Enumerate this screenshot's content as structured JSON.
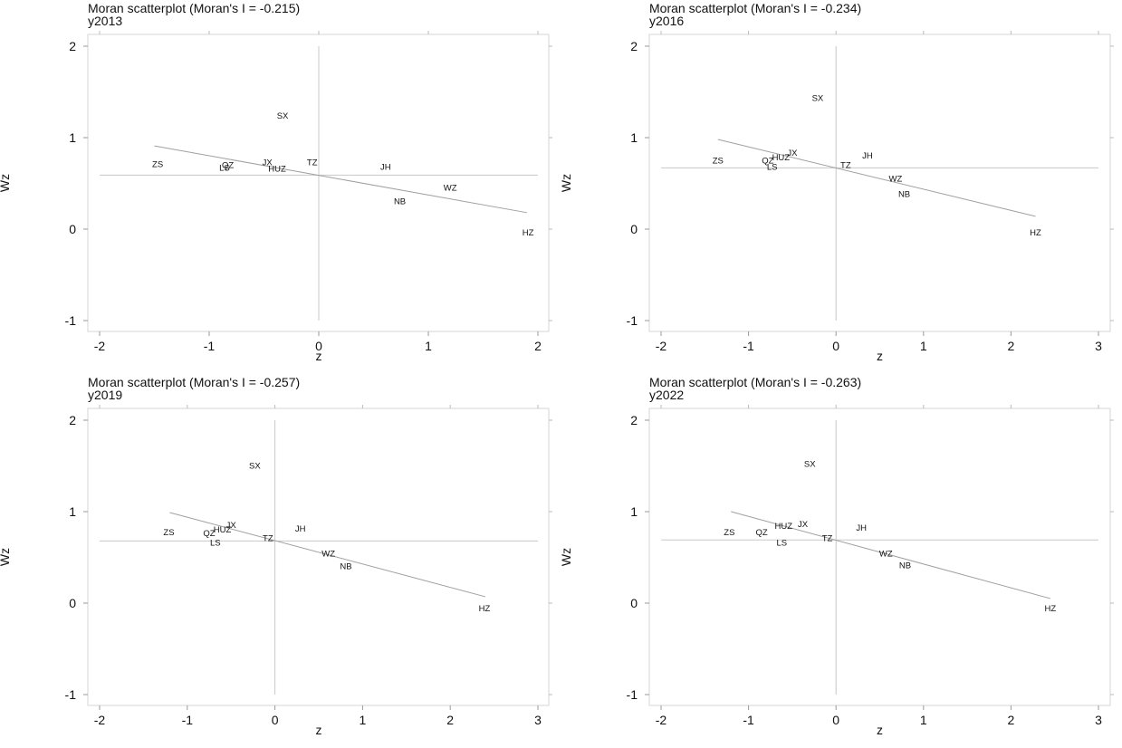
{
  "chart_data": [
    {
      "type": "scatter",
      "title": "Moran scatterplot (Moran's I = -0.215)",
      "subtitle": "y2013",
      "xlabel": "z",
      "ylabel": "Wz",
      "xlim": [
        -2,
        2
      ],
      "ylim": [
        -1,
        2
      ],
      "xticks": [
        "-2",
        "-1",
        "0",
        "1",
        "2"
      ],
      "yticks": [
        "-1",
        "0",
        "1",
        "2"
      ],
      "grid": false,
      "mean_wz": 0.59,
      "fit_line": {
        "x": [
          -1.5,
          1.9
        ],
        "y": [
          0.91,
          0.18
        ]
      },
      "points": [
        {
          "label": "SX",
          "x": -0.33,
          "y": 1.24
        },
        {
          "label": "ZS",
          "x": -1.47,
          "y": 0.71
        },
        {
          "label": "QZ",
          "x": -0.83,
          "y": 0.7
        },
        {
          "label": "LS",
          "x": -0.86,
          "y": 0.67
        },
        {
          "label": "JX",
          "x": -0.47,
          "y": 0.73
        },
        {
          "label": "HUZ",
          "x": -0.38,
          "y": 0.66
        },
        {
          "label": "TZ",
          "x": -0.06,
          "y": 0.73
        },
        {
          "label": "JH",
          "x": 0.61,
          "y": 0.68
        },
        {
          "label": "WZ",
          "x": 1.2,
          "y": 0.45
        },
        {
          "label": "NB",
          "x": 0.74,
          "y": 0.3
        },
        {
          "label": "HZ",
          "x": 1.91,
          "y": -0.04
        }
      ]
    },
    {
      "type": "scatter",
      "title": "Moran scatterplot (Moran's I = -0.234)",
      "subtitle": "y2016",
      "xlabel": "z",
      "ylabel": "Wz",
      "xlim": [
        -2,
        3
      ],
      "ylim": [
        -1,
        2
      ],
      "xticks": [
        "-2",
        "-1",
        "0",
        "1",
        "2",
        "3"
      ],
      "yticks": [
        "-1",
        "0",
        "1",
        "2"
      ],
      "grid": false,
      "mean_wz": 0.67,
      "fit_line": {
        "x": [
          -1.35,
          2.28
        ],
        "y": [
          0.98,
          0.14
        ]
      },
      "points": [
        {
          "label": "SX",
          "x": -0.21,
          "y": 1.43
        },
        {
          "label": "ZS",
          "x": -1.35,
          "y": 0.75
        },
        {
          "label": "QZ",
          "x": -0.78,
          "y": 0.75
        },
        {
          "label": "HUZ",
          "x": -0.63,
          "y": 0.78
        },
        {
          "label": "JX",
          "x": -0.5,
          "y": 0.83
        },
        {
          "label": "LS",
          "x": -0.73,
          "y": 0.68
        },
        {
          "label": "TZ",
          "x": 0.11,
          "y": 0.7
        },
        {
          "label": "JH",
          "x": 0.36,
          "y": 0.8
        },
        {
          "label": "WZ",
          "x": 0.68,
          "y": 0.55
        },
        {
          "label": "NB",
          "x": 0.78,
          "y": 0.38
        },
        {
          "label": "HZ",
          "x": 2.28,
          "y": -0.04
        }
      ]
    },
    {
      "type": "scatter",
      "title": "Moran scatterplot (Moran's I = -0.257)",
      "subtitle": "y2019",
      "xlabel": "z",
      "ylabel": "Wz",
      "xlim": [
        -2,
        3
      ],
      "ylim": [
        -1,
        2
      ],
      "xticks": [
        "-2",
        "-1",
        "0",
        "1",
        "2",
        "3"
      ],
      "yticks": [
        "-1",
        "0",
        "1",
        "2"
      ],
      "grid": false,
      "mean_wz": 0.68,
      "fit_line": {
        "x": [
          -1.2,
          2.4
        ],
        "y": [
          0.99,
          0.07
        ]
      },
      "points": [
        {
          "label": "SX",
          "x": -0.23,
          "y": 1.5
        },
        {
          "label": "ZS",
          "x": -1.21,
          "y": 0.77
        },
        {
          "label": "QZ",
          "x": -0.75,
          "y": 0.76
        },
        {
          "label": "HUZ",
          "x": -0.6,
          "y": 0.8
        },
        {
          "label": "JX",
          "x": -0.5,
          "y": 0.85
        },
        {
          "label": "LS",
          "x": -0.68,
          "y": 0.66
        },
        {
          "label": "TZ",
          "x": -0.08,
          "y": 0.71
        },
        {
          "label": "JH",
          "x": 0.29,
          "y": 0.81
        },
        {
          "label": "WZ",
          "x": 0.61,
          "y": 0.54
        },
        {
          "label": "NB",
          "x": 0.81,
          "y": 0.4
        },
        {
          "label": "HZ",
          "x": 2.39,
          "y": -0.06
        }
      ]
    },
    {
      "type": "scatter",
      "title": "Moran scatterplot (Moran's I = -0.263)",
      "subtitle": "y2022",
      "xlabel": "z",
      "ylabel": "Wz",
      "xlim": [
        -2,
        3
      ],
      "ylim": [
        -1,
        2
      ],
      "xticks": [
        "-2",
        "-1",
        "0",
        "1",
        "2",
        "3"
      ],
      "yticks": [
        "-1",
        "0",
        "1",
        "2"
      ],
      "grid": false,
      "mean_wz": 0.69,
      "fit_line": {
        "x": [
          -1.2,
          2.45
        ],
        "y": [
          1.0,
          0.05
        ]
      },
      "points": [
        {
          "label": "SX",
          "x": -0.3,
          "y": 1.52
        },
        {
          "label": "ZS",
          "x": -1.22,
          "y": 0.77
        },
        {
          "label": "QZ",
          "x": -0.85,
          "y": 0.77
        },
        {
          "label": "HUZ",
          "x": -0.6,
          "y": 0.84
        },
        {
          "label": "JX",
          "x": -0.38,
          "y": 0.86
        },
        {
          "label": "LS",
          "x": -0.62,
          "y": 0.66
        },
        {
          "label": "TZ",
          "x": -0.1,
          "y": 0.71
        },
        {
          "label": "JH",
          "x": 0.29,
          "y": 0.82
        },
        {
          "label": "WZ",
          "x": 0.57,
          "y": 0.54
        },
        {
          "label": "NB",
          "x": 0.79,
          "y": 0.41
        },
        {
          "label": "HZ",
          "x": 2.45,
          "y": -0.06
        }
      ]
    }
  ]
}
